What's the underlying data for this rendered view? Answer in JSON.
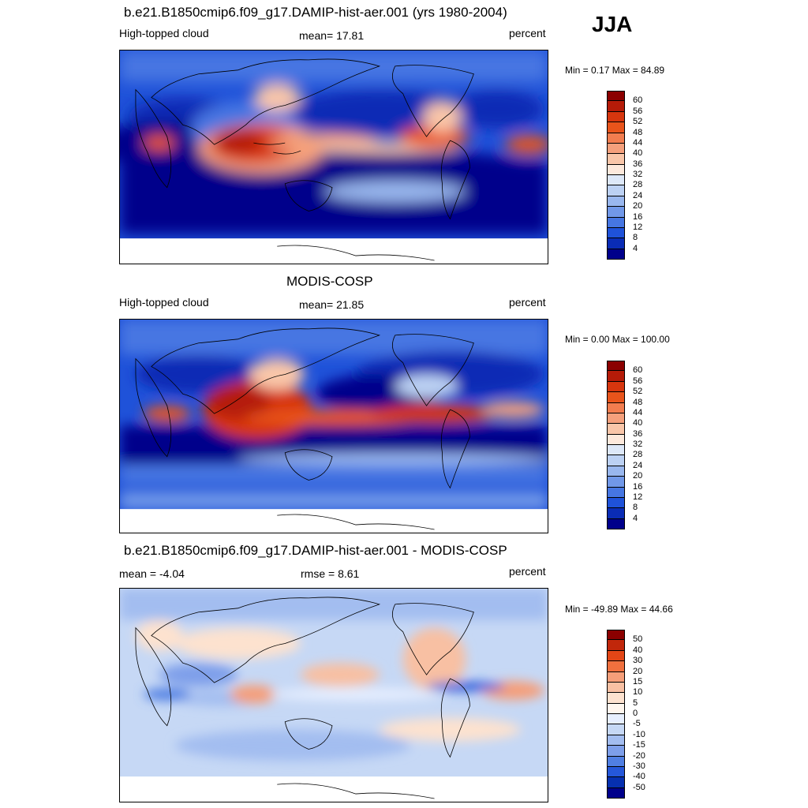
{
  "season": "JJA",
  "panels": [
    {
      "title": "b.e21.B1850cmip6.f09_g17.DAMIP-hist-aer.001 (yrs 1980-2004)",
      "left_label": "High-topped cloud",
      "center_label": "mean=  17.81",
      "right_label": "percent",
      "minmax": "Min =   0.17 Max =  84.89",
      "colorbar_labels": [
        "60",
        "56",
        "52",
        "48",
        "44",
        "40",
        "36",
        "32",
        "28",
        "24",
        "20",
        "16",
        "12",
        "8",
        "4"
      ]
    },
    {
      "title": "MODIS-COSP",
      "left_label": "High-topped cloud",
      "center_label": "mean=  21.85",
      "right_label": "percent",
      "minmax": "Min =   0.00 Max = 100.00",
      "colorbar_labels": [
        "60",
        "56",
        "52",
        "48",
        "44",
        "40",
        "36",
        "32",
        "28",
        "24",
        "20",
        "16",
        "12",
        "8",
        "4"
      ]
    },
    {
      "title": "b.e21.B1850cmip6.f09_g17.DAMIP-hist-aer.001 - MODIS-COSP",
      "left_label": "mean =  -4.04",
      "center_label": "rmse =   8.61",
      "right_label": "percent",
      "minmax": "Min = -49.89 Max =  44.66",
      "colorbar_labels": [
        "50",
        "40",
        "30",
        "20",
        "15",
        "10",
        "5",
        "0",
        "-5",
        "-10",
        "-15",
        "-20",
        "-30",
        "-40",
        "-50"
      ]
    }
  ],
  "colors": {
    "seq": [
      "#8b0000",
      "#b51b08",
      "#d7360e",
      "#e9541b",
      "#f27d4f",
      "#f5a07c",
      "#f9c6a9",
      "#fde9dc",
      "#dde8f8",
      "#bcd1f3",
      "#99b7ee",
      "#7198e8",
      "#4676e2",
      "#1f52d9",
      "#0a2cb5",
      "#00008b"
    ],
    "diff": [
      "#8b0000",
      "#c1270b",
      "#e34616",
      "#f0703e",
      "#f59e79",
      "#f8c0a3",
      "#fde2cf",
      "#fff6ee",
      "#e7efff",
      "#c6d8f5",
      "#a3bdf0",
      "#7e9fea",
      "#507fe3",
      "#2557d9",
      "#0630b0",
      "#00008b"
    ],
    "land_outline": "#000000",
    "missing": "#ffffff"
  }
}
